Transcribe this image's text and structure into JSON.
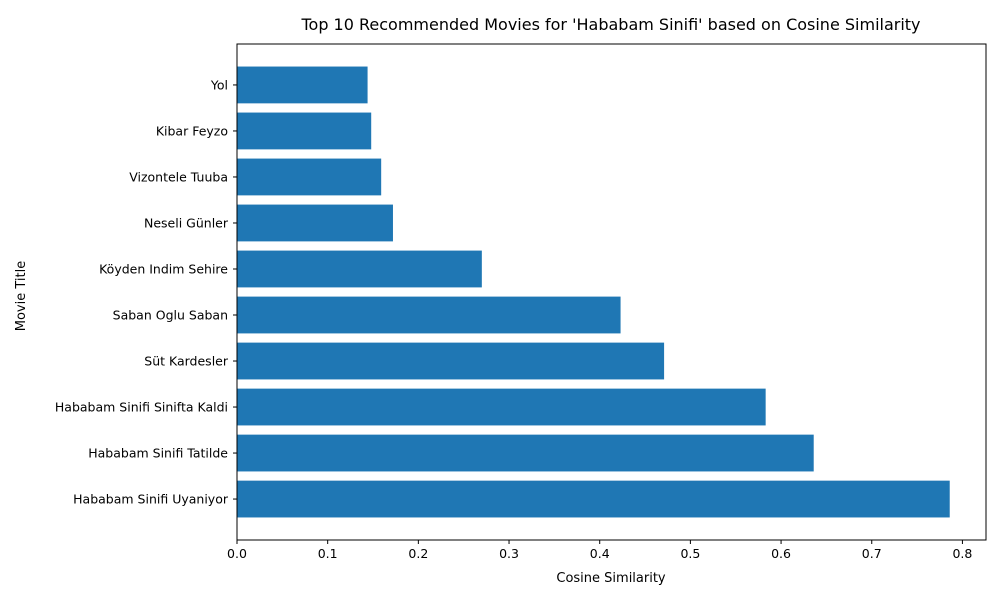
{
  "chart_data": {
    "type": "bar",
    "orientation": "horizontal",
    "title": "Top 10 Recommended Movies for 'Hababam Sinifi' based on Cosine Similarity",
    "xlabel": "Cosine Similarity",
    "ylabel": "Movie Title",
    "categories": [
      "Hababam Sinifi Uyaniyor",
      "Hababam Sinifi Tatilde",
      "Hababam Sinifi Sinifta Kaldi",
      "Süt Kardesler",
      "Saban Oglu Saban",
      "Köyden Indim Sehire",
      "Neseli Günler",
      "Vizontele Tuuba",
      "Kibar Feyzo",
      "Yol"
    ],
    "values": [
      0.786,
      0.636,
      0.583,
      0.471,
      0.423,
      0.27,
      0.172,
      0.159,
      0.148,
      0.144
    ],
    "xlim": [
      0,
      0.826
    ],
    "xticks": [
      0.0,
      0.1,
      0.2,
      0.3,
      0.4,
      0.5,
      0.6,
      0.7,
      0.8
    ],
    "xtick_labels": [
      "0.0",
      "0.1",
      "0.2",
      "0.3",
      "0.4",
      "0.5",
      "0.6",
      "0.7",
      "0.8"
    ],
    "bar_color": "#1f77b4",
    "grid": false,
    "legend": false
  }
}
